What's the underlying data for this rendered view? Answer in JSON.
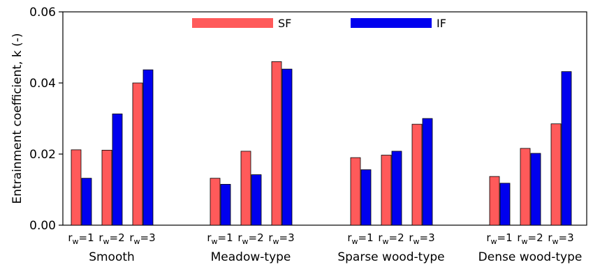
{
  "chart_data": {
    "type": "bar",
    "ylabel": "Entrainment coefficient, k (-)",
    "ylim": [
      0,
      0.06
    ],
    "yticks": [
      "0.00",
      "0.02",
      "0.04",
      "0.06"
    ],
    "groups": [
      "Smooth",
      "Meadow-type",
      "Sparse wood-type",
      "Dense wood-type"
    ],
    "subcategories": [
      "rw=1",
      "rw=2",
      "rw=3"
    ],
    "legend_position": "top-center",
    "grid": false,
    "series": [
      {
        "name": "SF",
        "color": "#ff5a5a",
        "values": [
          [
            0.0212,
            0.0211,
            0.04
          ],
          [
            0.0132,
            0.0208,
            0.046
          ],
          [
            0.019,
            0.0197,
            0.0284
          ],
          [
            0.0137,
            0.0216,
            0.0285
          ]
        ]
      },
      {
        "name": "IF",
        "color": "#0000ee",
        "values": [
          [
            0.0132,
            0.0313,
            0.0437
          ],
          [
            0.0115,
            0.0142,
            0.0439
          ],
          [
            0.0156,
            0.0208,
            0.03
          ],
          [
            0.0118,
            0.0202,
            0.0432
          ]
        ]
      }
    ]
  }
}
